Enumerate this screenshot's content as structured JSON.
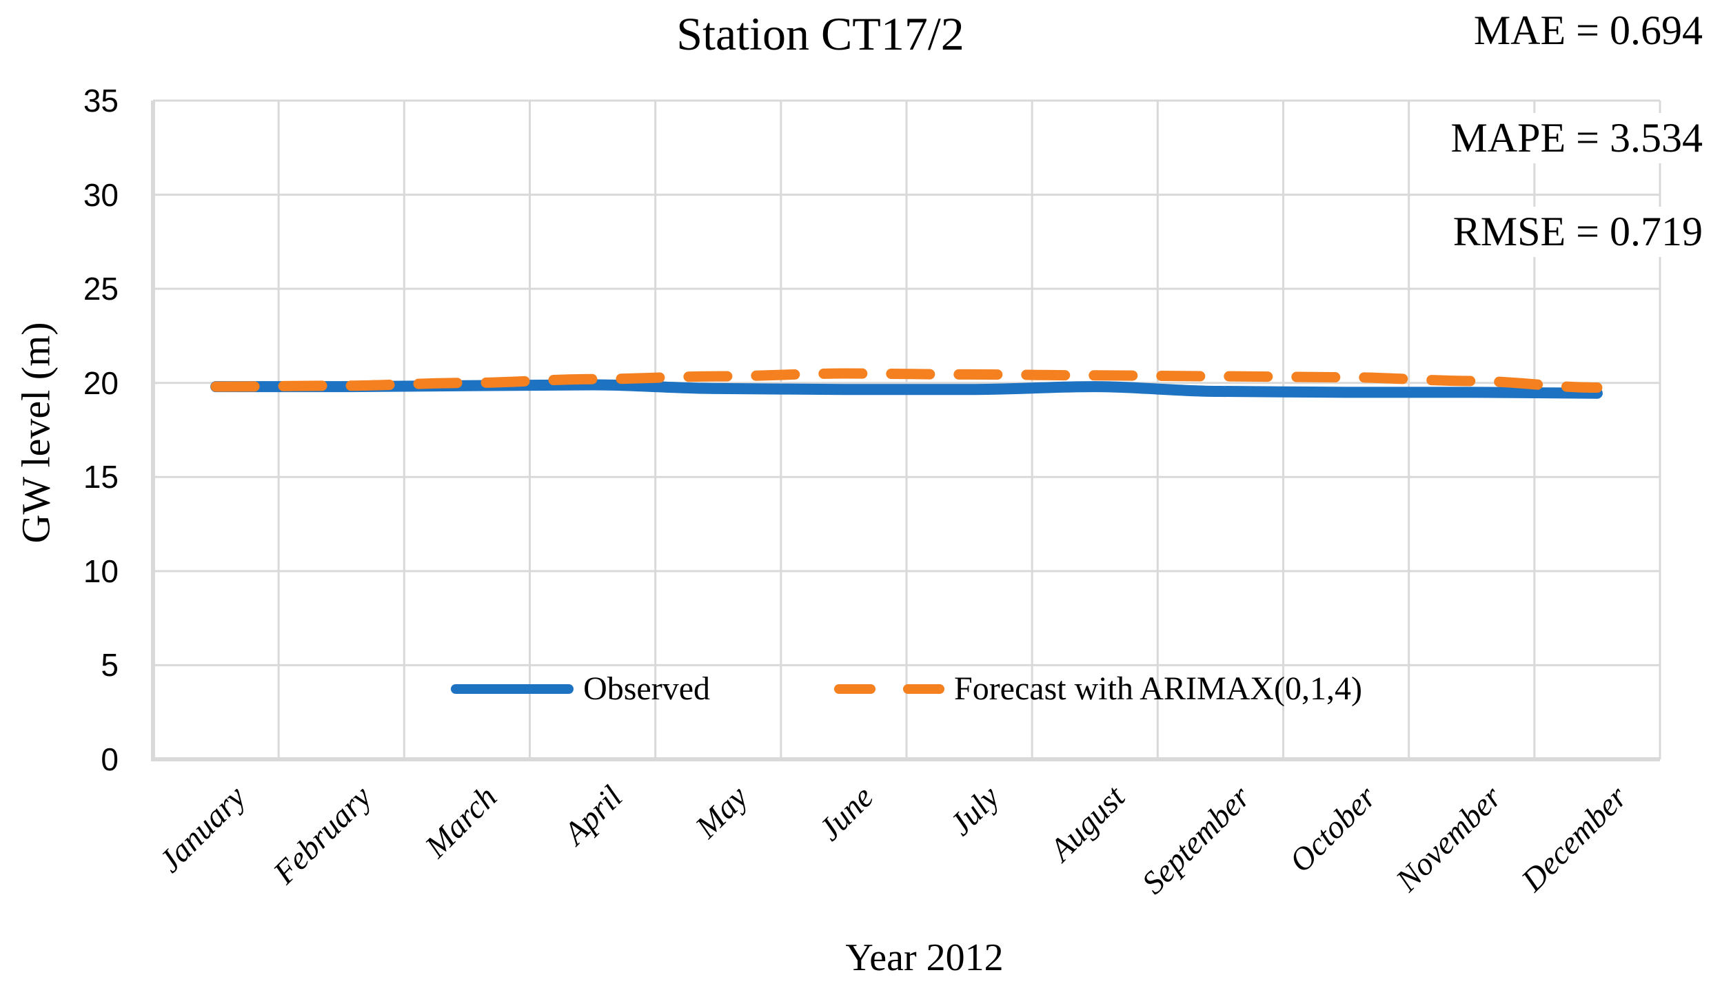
{
  "chart_data": {
    "type": "line",
    "title": "Station CT17/2",
    "x_axis_title": "Year 2012",
    "y_axis_title": "GW level (m)",
    "categories": [
      "January",
      "February",
      "March",
      "April",
      "May",
      "June",
      "July",
      "August",
      "September",
      "October",
      "November",
      "December"
    ],
    "y_ticks": [
      0,
      5,
      10,
      15,
      20,
      25,
      30,
      35
    ],
    "ylim": [
      0,
      35
    ],
    "grid": true,
    "legend_position": "bottom-inside",
    "gridline_color": "#D9D9D9",
    "series": [
      {
        "name": "Observed",
        "style": "solid",
        "color": "#1D72C2",
        "values": [
          19.8,
          19.8,
          19.85,
          19.9,
          19.7,
          19.65,
          19.65,
          19.8,
          19.55,
          19.5,
          19.5,
          19.45
        ]
      },
      {
        "name": "Forecast with ARIMAX(0,1,4)",
        "style": "dashed",
        "color": "#F4801F",
        "values": [
          19.8,
          19.85,
          20.0,
          20.2,
          20.35,
          20.5,
          20.45,
          20.4,
          20.35,
          20.3,
          20.1,
          19.75
        ]
      }
    ],
    "annotations": [
      {
        "metric": "MAE",
        "value": 0.694,
        "text": "MAE = 0.694"
      },
      {
        "metric": "MAPE",
        "value": 3.534,
        "text": "MAPE = 3.534"
      },
      {
        "metric": "RMSE",
        "value": 0.719,
        "text": "RMSE = 0.719"
      }
    ]
  }
}
